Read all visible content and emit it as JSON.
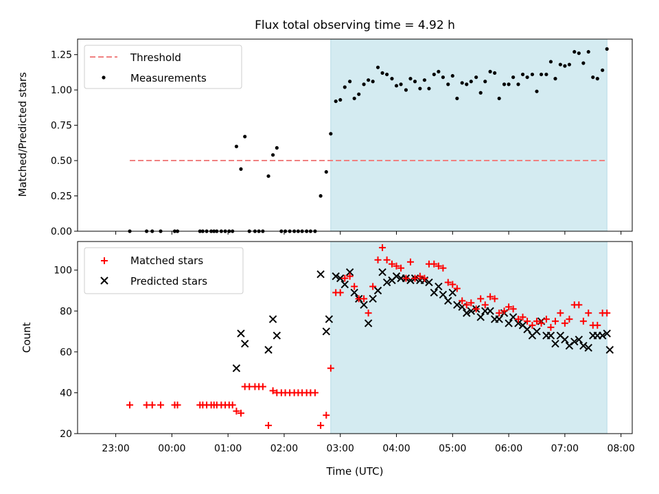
{
  "chart_data": {
    "title": "Flux total observing time = 4.92 h",
    "xlabel": "Time (UTC)",
    "x_units": "hours relative to 00:00 UTC",
    "x_ticks": [
      {
        "value": -1,
        "label": "23:00"
      },
      {
        "value": 0,
        "label": "00:00"
      },
      {
        "value": 1,
        "label": "01:00"
      },
      {
        "value": 2,
        "label": "02:00"
      },
      {
        "value": 3,
        "label": "03:00"
      },
      {
        "value": 4,
        "label": "04:00"
      },
      {
        "value": 5,
        "label": "05:00"
      },
      {
        "value": 6,
        "label": "06:00"
      },
      {
        "value": 7,
        "label": "07:00"
      },
      {
        "value": 8,
        "label": "08:00"
      }
    ],
    "xlim": [
      -1.68,
      8.2
    ],
    "shaded_region": {
      "start": 2.83,
      "end": 7.75,
      "color": "#d4ebf1"
    },
    "top": {
      "type": "scatter",
      "ylabel": "Matched/Predicted stars",
      "ylim": [
        0,
        1.36
      ],
      "y_ticks": [
        "0.00",
        "0.25",
        "0.50",
        "0.75",
        "1.00",
        "1.25"
      ],
      "legend_position": "upper-left",
      "threshold": {
        "name": "Threshold",
        "value": 0.5,
        "x_start": -0.75,
        "x_end": 7.75,
        "color": "#f08080"
      },
      "series": [
        {
          "name": "Measurements",
          "color": "#000000",
          "points": [
            [
              -0.75,
              0.0
            ],
            [
              -0.45,
              0.0
            ],
            [
              -0.35,
              0.0
            ],
            [
              -0.2,
              0.0
            ],
            [
              0.05,
              0.0
            ],
            [
              0.1,
              0.0
            ],
            [
              0.5,
              0.0
            ],
            [
              0.55,
              0.0
            ],
            [
              0.62,
              0.0
            ],
            [
              0.7,
              0.0
            ],
            [
              0.75,
              0.0
            ],
            [
              0.8,
              0.0
            ],
            [
              0.88,
              0.0
            ],
            [
              0.95,
              0.0
            ],
            [
              1.02,
              0.0
            ],
            [
              1.08,
              0.0
            ],
            [
              1.15,
              0.6
            ],
            [
              1.23,
              0.44
            ],
            [
              1.3,
              0.67
            ],
            [
              1.38,
              0.0
            ],
            [
              1.48,
              0.0
            ],
            [
              1.55,
              0.0
            ],
            [
              1.62,
              0.0
            ],
            [
              1.72,
              0.39
            ],
            [
              1.8,
              0.54
            ],
            [
              1.87,
              0.59
            ],
            [
              1.95,
              0.0
            ],
            [
              2.02,
              0.0
            ],
            [
              2.1,
              0.0
            ],
            [
              2.18,
              0.0
            ],
            [
              2.25,
              0.0
            ],
            [
              2.32,
              0.0
            ],
            [
              2.4,
              0.0
            ],
            [
              2.47,
              0.0
            ],
            [
              2.55,
              0.0
            ],
            [
              2.65,
              0.25
            ],
            [
              2.75,
              0.42
            ],
            [
              2.83,
              0.69
            ],
            [
              2.92,
              0.92
            ],
            [
              3.0,
              0.93
            ],
            [
              3.08,
              1.02
            ],
            [
              3.17,
              1.06
            ],
            [
              3.25,
              0.94
            ],
            [
              3.33,
              0.97
            ],
            [
              3.42,
              1.04
            ],
            [
              3.5,
              1.07
            ],
            [
              3.58,
              1.06
            ],
            [
              3.67,
              1.16
            ],
            [
              3.75,
              1.12
            ],
            [
              3.83,
              1.11
            ],
            [
              3.92,
              1.08
            ],
            [
              4.0,
              1.03
            ],
            [
              4.08,
              1.04
            ],
            [
              4.17,
              1.0
            ],
            [
              4.25,
              1.08
            ],
            [
              4.33,
              1.06
            ],
            [
              4.42,
              1.01
            ],
            [
              4.5,
              1.07
            ],
            [
              4.58,
              1.01
            ],
            [
              4.67,
              1.11
            ],
            [
              4.75,
              1.13
            ],
            [
              4.83,
              1.09
            ],
            [
              4.92,
              1.04
            ],
            [
              5.0,
              1.1
            ],
            [
              5.08,
              0.94
            ],
            [
              5.17,
              1.05
            ],
            [
              5.25,
              1.04
            ],
            [
              5.33,
              1.06
            ],
            [
              5.42,
              1.09
            ],
            [
              5.5,
              0.98
            ],
            [
              5.58,
              1.06
            ],
            [
              5.67,
              1.13
            ],
            [
              5.75,
              1.12
            ],
            [
              5.83,
              0.94
            ],
            [
              5.92,
              1.04
            ],
            [
              6.0,
              1.04
            ],
            [
              6.08,
              1.09
            ],
            [
              6.17,
              1.04
            ],
            [
              6.25,
              1.11
            ],
            [
              6.33,
              1.09
            ],
            [
              6.42,
              1.11
            ],
            [
              6.5,
              0.99
            ],
            [
              6.58,
              1.11
            ],
            [
              6.67,
              1.11
            ],
            [
              6.75,
              1.2
            ],
            [
              6.83,
              1.08
            ],
            [
              6.92,
              1.18
            ],
            [
              7.0,
              1.17
            ],
            [
              7.08,
              1.18
            ],
            [
              7.17,
              1.27
            ],
            [
              7.25,
              1.26
            ],
            [
              7.33,
              1.19
            ],
            [
              7.42,
              1.27
            ],
            [
              7.5,
              1.09
            ],
            [
              7.58,
              1.08
            ],
            [
              7.67,
              1.14
            ],
            [
              7.75,
              1.29
            ]
          ]
        }
      ]
    },
    "bottom": {
      "type": "scatter",
      "ylabel": "Count",
      "ylim": [
        20,
        114
      ],
      "y_ticks": [
        "20",
        "40",
        "60",
        "80",
        "100"
      ],
      "legend_position": "upper-left",
      "series": [
        {
          "name": "Matched stars",
          "marker": "plus",
          "color": "#ff0000",
          "points": [
            [
              -0.75,
              34
            ],
            [
              -0.45,
              34
            ],
            [
              -0.35,
              34
            ],
            [
              -0.2,
              34
            ],
            [
              0.05,
              34
            ],
            [
              0.1,
              34
            ],
            [
              0.5,
              34
            ],
            [
              0.55,
              34
            ],
            [
              0.62,
              34
            ],
            [
              0.7,
              34
            ],
            [
              0.75,
              34
            ],
            [
              0.8,
              34
            ],
            [
              0.88,
              34
            ],
            [
              0.95,
              34
            ],
            [
              1.02,
              34
            ],
            [
              1.08,
              34
            ],
            [
              1.15,
              31
            ],
            [
              1.23,
              30
            ],
            [
              1.3,
              43
            ],
            [
              1.38,
              43
            ],
            [
              1.48,
              43
            ],
            [
              1.55,
              43
            ],
            [
              1.62,
              43
            ],
            [
              1.72,
              24
            ],
            [
              1.8,
              41
            ],
            [
              1.87,
              40
            ],
            [
              1.95,
              40
            ],
            [
              2.02,
              40
            ],
            [
              2.1,
              40
            ],
            [
              2.18,
              40
            ],
            [
              2.25,
              40
            ],
            [
              2.32,
              40
            ],
            [
              2.4,
              40
            ],
            [
              2.47,
              40
            ],
            [
              2.55,
              40
            ],
            [
              2.65,
              24
            ],
            [
              2.75,
              29
            ],
            [
              2.83,
              52
            ],
            [
              2.92,
              89
            ],
            [
              3.0,
              89
            ],
            [
              3.08,
              96
            ],
            [
              3.17,
              97
            ],
            [
              3.25,
              92
            ],
            [
              3.33,
              86
            ],
            [
              3.42,
              86
            ],
            [
              3.5,
              79
            ],
            [
              3.58,
              92
            ],
            [
              3.67,
              105
            ],
            [
              3.75,
              111
            ],
            [
              3.83,
              105
            ],
            [
              3.92,
              103
            ],
            [
              4.0,
              102
            ],
            [
              4.08,
              101
            ],
            [
              4.17,
              96
            ],
            [
              4.25,
              104
            ],
            [
              4.33,
              96
            ],
            [
              4.42,
              97
            ],
            [
              4.5,
              96
            ],
            [
              4.58,
              103
            ],
            [
              4.67,
              103
            ],
            [
              4.75,
              102
            ],
            [
              4.83,
              101
            ],
            [
              4.92,
              94
            ],
            [
              5.0,
              93
            ],
            [
              5.08,
              91
            ],
            [
              5.17,
              85
            ],
            [
              5.25,
              83
            ],
            [
              5.33,
              84
            ],
            [
              5.42,
              81
            ],
            [
              5.5,
              86
            ],
            [
              5.58,
              83
            ],
            [
              5.67,
              87
            ],
            [
              5.75,
              86
            ],
            [
              5.83,
              79
            ],
            [
              5.92,
              80
            ],
            [
              6.0,
              82
            ],
            [
              6.08,
              81
            ],
            [
              6.17,
              76
            ],
            [
              6.25,
              77
            ],
            [
              6.33,
              75
            ],
            [
              6.42,
              73
            ],
            [
              6.5,
              75
            ],
            [
              6.58,
              74
            ],
            [
              6.67,
              76
            ],
            [
              6.75,
              72
            ],
            [
              6.83,
              75
            ],
            [
              6.92,
              79
            ],
            [
              7.0,
              74
            ],
            [
              7.08,
              76
            ],
            [
              7.17,
              83
            ],
            [
              7.25,
              83
            ],
            [
              7.33,
              75
            ],
            [
              7.42,
              79
            ],
            [
              7.5,
              73
            ],
            [
              7.58,
              73
            ],
            [
              7.67,
              79
            ],
            [
              7.75,
              79
            ]
          ]
        },
        {
          "name": "Predicted stars",
          "marker": "x",
          "color": "#000000",
          "points": [
            [
              1.15,
              52
            ],
            [
              1.23,
              69
            ],
            [
              1.3,
              64
            ],
            [
              1.72,
              61
            ],
            [
              1.8,
              76
            ],
            [
              1.87,
              68
            ],
            [
              2.65,
              98
            ],
            [
              2.75,
              70
            ],
            [
              2.8,
              76
            ],
            [
              2.92,
              97
            ],
            [
              3.0,
              96
            ],
            [
              3.08,
              93
            ],
            [
              3.17,
              99
            ],
            [
              3.25,
              89
            ],
            [
              3.33,
              86
            ],
            [
              3.42,
              83
            ],
            [
              3.5,
              74
            ],
            [
              3.58,
              86
            ],
            [
              3.67,
              90
            ],
            [
              3.75,
              99
            ],
            [
              3.83,
              94
            ],
            [
              3.92,
              95
            ],
            [
              4.0,
              97
            ],
            [
              4.08,
              96
            ],
            [
              4.17,
              96
            ],
            [
              4.25,
              95
            ],
            [
              4.33,
              96
            ],
            [
              4.42,
              95
            ],
            [
              4.5,
              95
            ],
            [
              4.58,
              94
            ],
            [
              4.67,
              89
            ],
            [
              4.75,
              92
            ],
            [
              4.83,
              88
            ],
            [
              4.92,
              85
            ],
            [
              5.0,
              89
            ],
            [
              5.08,
              83
            ],
            [
              5.17,
              82
            ],
            [
              5.25,
              79
            ],
            [
              5.33,
              80
            ],
            [
              5.42,
              81
            ],
            [
              5.5,
              77
            ],
            [
              5.58,
              80
            ],
            [
              5.67,
              80
            ],
            [
              5.75,
              76
            ],
            [
              5.83,
              76
            ],
            [
              5.92,
              79
            ],
            [
              6.0,
              74
            ],
            [
              6.08,
              77
            ],
            [
              6.17,
              74
            ],
            [
              6.25,
              73
            ],
            [
              6.33,
              71
            ],
            [
              6.42,
              68
            ],
            [
              6.5,
              70
            ],
            [
              6.58,
              75
            ],
            [
              6.67,
              68
            ],
            [
              6.75,
              68
            ],
            [
              6.83,
              64
            ],
            [
              6.92,
              68
            ],
            [
              7.0,
              66
            ],
            [
              7.08,
              63
            ],
            [
              7.17,
              65
            ],
            [
              7.25,
              66
            ],
            [
              7.33,
              63
            ],
            [
              7.42,
              62
            ],
            [
              7.5,
              68
            ],
            [
              7.58,
              68
            ],
            [
              7.67,
              68
            ],
            [
              7.75,
              69
            ],
            [
              7.8,
              61
            ]
          ]
        }
      ]
    }
  }
}
